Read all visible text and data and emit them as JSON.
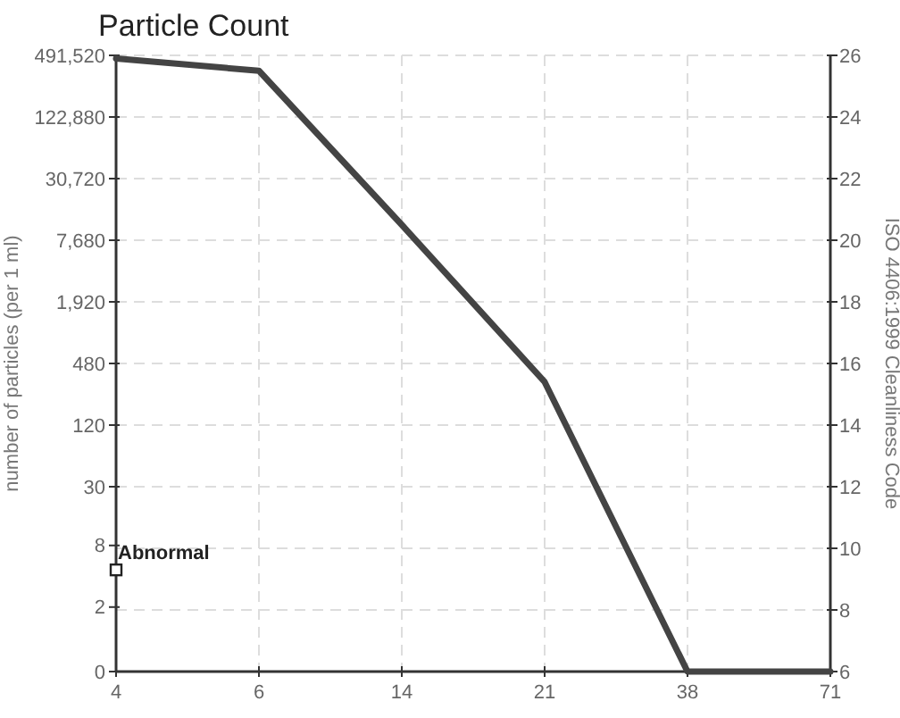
{
  "chart_data": {
    "type": "line",
    "title": "Particle Count",
    "ylabel": "ISO 4406:1999 Cleanliness Code",
    "y2label": "number of particles (per 1 ml)",
    "categories": [
      "4",
      "6",
      "14",
      "21",
      "38",
      "71"
    ],
    "series": [
      {
        "color": "#444444",
        "values": [
          25.9,
          25.5,
          20.5,
          15.4,
          6,
          6
        ]
      }
    ],
    "ylim": [
      6,
      26
    ],
    "yticks": [
      6,
      8,
      10,
      12,
      14,
      16,
      18,
      20,
      22,
      24,
      26
    ],
    "y2lim": [
      0.46875,
      491520
    ],
    "log": "y2",
    "y2ticks": [
      {
        "value": 0.46875,
        "label": "0"
      },
      2,
      8,
      30,
      120,
      480,
      {
        "value": 1920,
        "label": "1,920"
      },
      {
        "value": 7680,
        "label": "7,680"
      },
      {
        "value": 30720,
        "label": "30,720"
      },
      {
        "value": 122880,
        "label": "122,880"
      },
      {
        "value": 491520,
        "label": "491,520"
      }
    ],
    "annotations": [
      {
        "text": "Abnormal",
        "x": "4",
        "y": 9.3
      }
    ],
    "grid": true,
    "marker": "none",
    "line_style": "solid"
  }
}
